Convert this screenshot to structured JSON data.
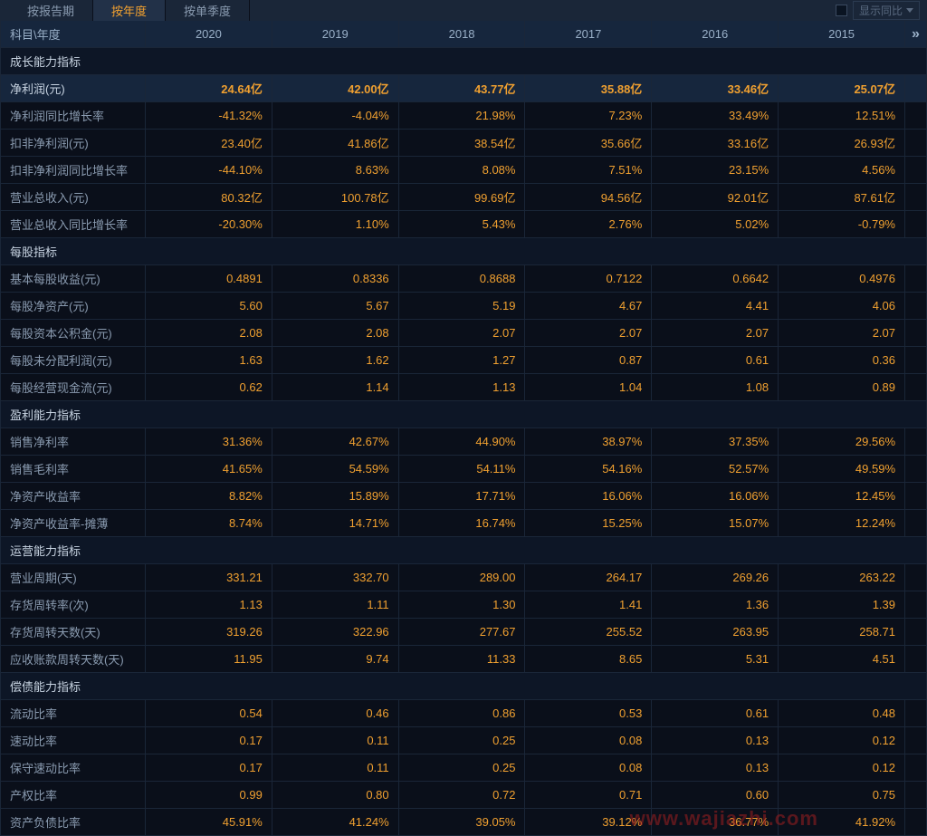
{
  "tabs": {
    "items": [
      "按报告期",
      "按年度",
      "按单季度"
    ],
    "active_index": 1,
    "dropdown_label": "显示同比"
  },
  "header": {
    "label_col": "科目\\年度",
    "years": [
      "2020",
      "2019",
      "2018",
      "2017",
      "2016",
      "2015"
    ]
  },
  "sections": [
    {
      "title": "成长能力指标",
      "rows": [
        {
          "label": "净利润(元)",
          "highlight": true,
          "values": [
            "24.64亿",
            "42.00亿",
            "43.77亿",
            "35.88亿",
            "33.46亿",
            "25.07亿"
          ]
        },
        {
          "label": "净利润同比增长率",
          "values": [
            "-41.32%",
            "-4.04%",
            "21.98%",
            "7.23%",
            "33.49%",
            "12.51%"
          ]
        },
        {
          "label": "扣非净利润(元)",
          "values": [
            "23.40亿",
            "41.86亿",
            "38.54亿",
            "35.66亿",
            "33.16亿",
            "26.93亿"
          ]
        },
        {
          "label": "扣非净利润同比增长率",
          "values": [
            "-44.10%",
            "8.63%",
            "8.08%",
            "7.51%",
            "23.15%",
            "4.56%"
          ]
        },
        {
          "label": "营业总收入(元)",
          "values": [
            "80.32亿",
            "100.78亿",
            "99.69亿",
            "94.56亿",
            "92.01亿",
            "87.61亿"
          ]
        },
        {
          "label": "营业总收入同比增长率",
          "values": [
            "-20.30%",
            "1.10%",
            "5.43%",
            "2.76%",
            "5.02%",
            "-0.79%"
          ]
        }
      ]
    },
    {
      "title": "每股指标",
      "rows": [
        {
          "label": "基本每股收益(元)",
          "values": [
            "0.4891",
            "0.8336",
            "0.8688",
            "0.7122",
            "0.6642",
            "0.4976"
          ]
        },
        {
          "label": "每股净资产(元)",
          "values": [
            "5.60",
            "5.67",
            "5.19",
            "4.67",
            "4.41",
            "4.06"
          ]
        },
        {
          "label": "每股资本公积金(元)",
          "values": [
            "2.08",
            "2.08",
            "2.07",
            "2.07",
            "2.07",
            "2.07"
          ]
        },
        {
          "label": "每股未分配利润(元)",
          "values": [
            "1.63",
            "1.62",
            "1.27",
            "0.87",
            "0.61",
            "0.36"
          ]
        },
        {
          "label": "每股经营现金流(元)",
          "values": [
            "0.62",
            "1.14",
            "1.13",
            "1.04",
            "1.08",
            "0.89"
          ]
        }
      ]
    },
    {
      "title": "盈利能力指标",
      "rows": [
        {
          "label": "销售净利率",
          "values": [
            "31.36%",
            "42.67%",
            "44.90%",
            "38.97%",
            "37.35%",
            "29.56%"
          ]
        },
        {
          "label": "销售毛利率",
          "values": [
            "41.65%",
            "54.59%",
            "54.11%",
            "54.16%",
            "52.57%",
            "49.59%"
          ]
        },
        {
          "label": "净资产收益率",
          "values": [
            "8.82%",
            "15.89%",
            "17.71%",
            "16.06%",
            "16.06%",
            "12.45%"
          ]
        },
        {
          "label": "净资产收益率-摊薄",
          "values": [
            "8.74%",
            "14.71%",
            "16.74%",
            "15.25%",
            "15.07%",
            "12.24%"
          ]
        }
      ]
    },
    {
      "title": "运营能力指标",
      "rows": [
        {
          "label": "营业周期(天)",
          "values": [
            "331.21",
            "332.70",
            "289.00",
            "264.17",
            "269.26",
            "263.22"
          ]
        },
        {
          "label": "存货周转率(次)",
          "values": [
            "1.13",
            "1.11",
            "1.30",
            "1.41",
            "1.36",
            "1.39"
          ]
        },
        {
          "label": "存货周转天数(天)",
          "values": [
            "319.26",
            "322.96",
            "277.67",
            "255.52",
            "263.95",
            "258.71"
          ]
        },
        {
          "label": "应收账款周转天数(天)",
          "values": [
            "11.95",
            "9.74",
            "11.33",
            "8.65",
            "5.31",
            "4.51"
          ]
        }
      ]
    },
    {
      "title": "偿债能力指标",
      "rows": [
        {
          "label": "流动比率",
          "values": [
            "0.54",
            "0.46",
            "0.86",
            "0.53",
            "0.61",
            "0.48"
          ]
        },
        {
          "label": "速动比率",
          "values": [
            "0.17",
            "0.11",
            "0.25",
            "0.08",
            "0.13",
            "0.12"
          ]
        },
        {
          "label": "保守速动比率",
          "values": [
            "0.17",
            "0.11",
            "0.25",
            "0.08",
            "0.13",
            "0.12"
          ]
        },
        {
          "label": "产权比率",
          "values": [
            "0.99",
            "0.80",
            "0.72",
            "0.71",
            "0.60",
            "0.75"
          ]
        },
        {
          "label": "资产负债比率",
          "values": [
            "45.91%",
            "41.24%",
            "39.05%",
            "39.12%",
            "36.77%",
            "41.92%"
          ]
        }
      ]
    }
  ],
  "watermark": "www.wajiazhi.com",
  "colors": {
    "background": "#0a0f1a",
    "header_bg": "#16263d",
    "section_bg": "#0d1626",
    "border": "#1a2638",
    "text_label": "#8a9bb0",
    "text_value": "#f0a030",
    "text_header": "#9ab0c8",
    "text_section": "#c8d4e2",
    "tab_active": "#f0a030",
    "watermark": "#aa2020"
  }
}
